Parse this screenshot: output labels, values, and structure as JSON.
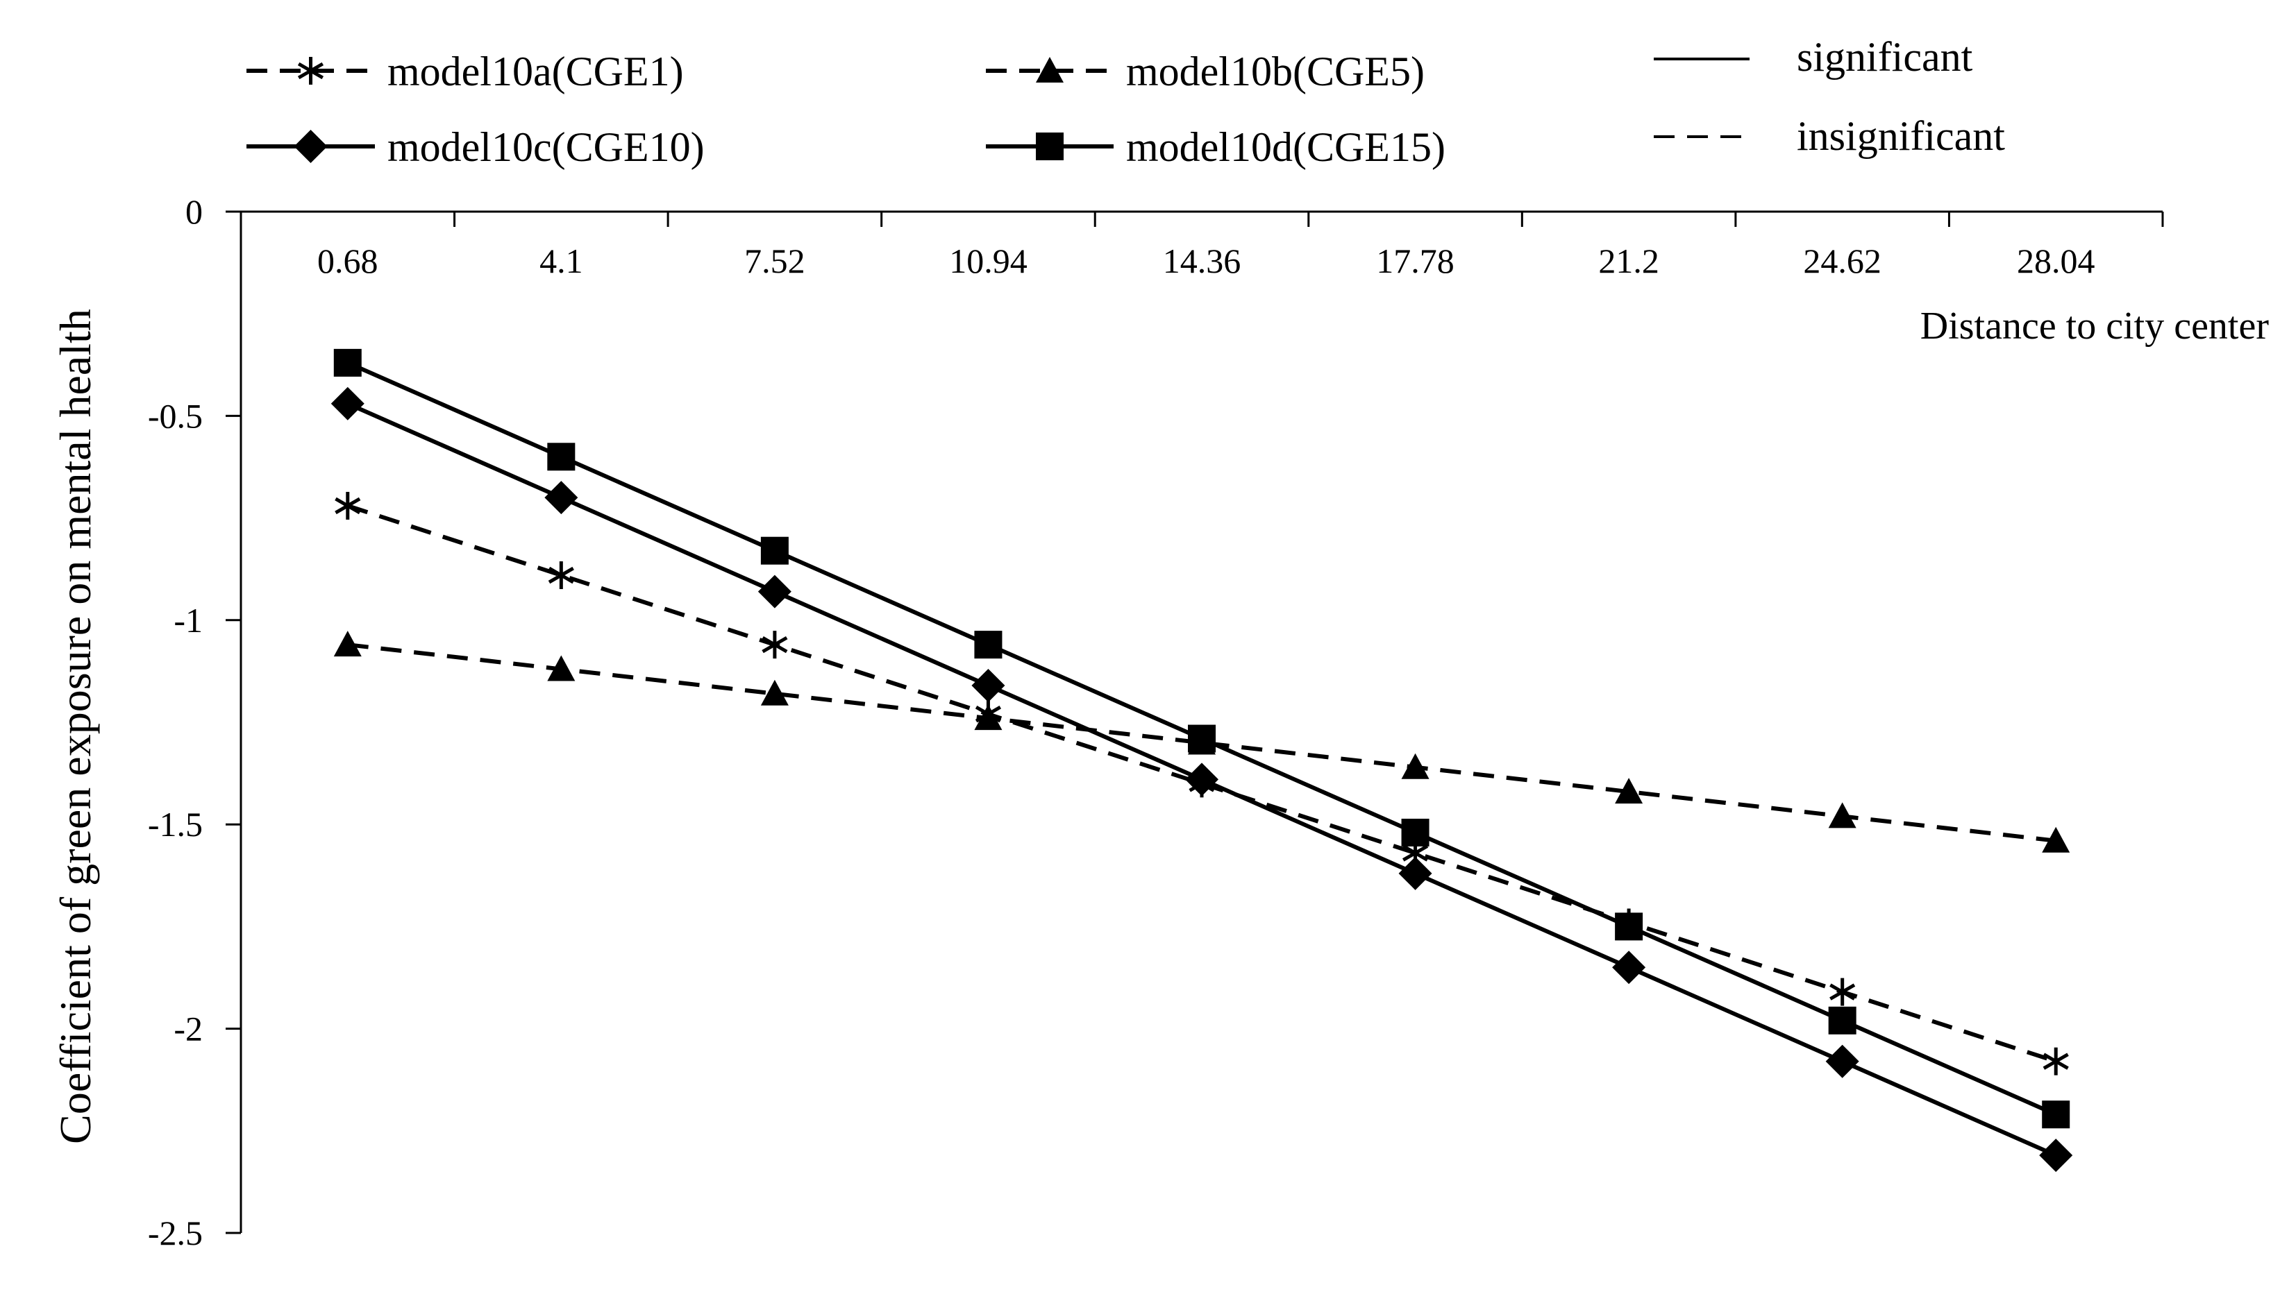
{
  "chart_data": {
    "type": "line",
    "title": "",
    "xlabel": "Distance to city center",
    "ylabel": "Coefficient of green exposure on mental health",
    "categories": [
      "0.68",
      "4.1",
      "7.52",
      "10.94",
      "14.36",
      "17.78",
      "21.2",
      "24.62",
      "28.04"
    ],
    "y_ticks": [
      "0",
      "-0.5",
      "-1",
      "-1.5",
      "-2",
      "-2.5"
    ],
    "ylim": [
      -2.5,
      0
    ],
    "grid": false,
    "legend_position": "top",
    "series": [
      {
        "name": "model10a(CGE1)",
        "marker": "asterisk",
        "style": "dashed",
        "values": [
          -0.72,
          -0.89,
          -1.06,
          -1.23,
          -1.4,
          -1.57,
          -1.74,
          -1.91,
          -2.08
        ]
      },
      {
        "name": "model10b(CGE5)",
        "marker": "triangle",
        "style": "dashed",
        "values": [
          -1.06,
          -1.12,
          -1.18,
          -1.24,
          -1.3,
          -1.36,
          -1.42,
          -1.48,
          -1.54
        ]
      },
      {
        "name": "model10c(CGE10)",
        "marker": "diamond",
        "style": "solid",
        "values": [
          -0.47,
          -0.7,
          -0.93,
          -1.16,
          -1.39,
          -1.62,
          -1.85,
          -2.08,
          -2.31
        ]
      },
      {
        "name": "model10d(CGE15)",
        "marker": "square",
        "style": "solid",
        "values": [
          -0.37,
          -0.6,
          -0.83,
          -1.06,
          -1.29,
          -1.52,
          -1.75,
          -1.98,
          -2.21
        ]
      }
    ],
    "line_style_legend": [
      {
        "label": "significant",
        "style": "solid"
      },
      {
        "label": "insignificant",
        "style": "dashed"
      }
    ]
  }
}
